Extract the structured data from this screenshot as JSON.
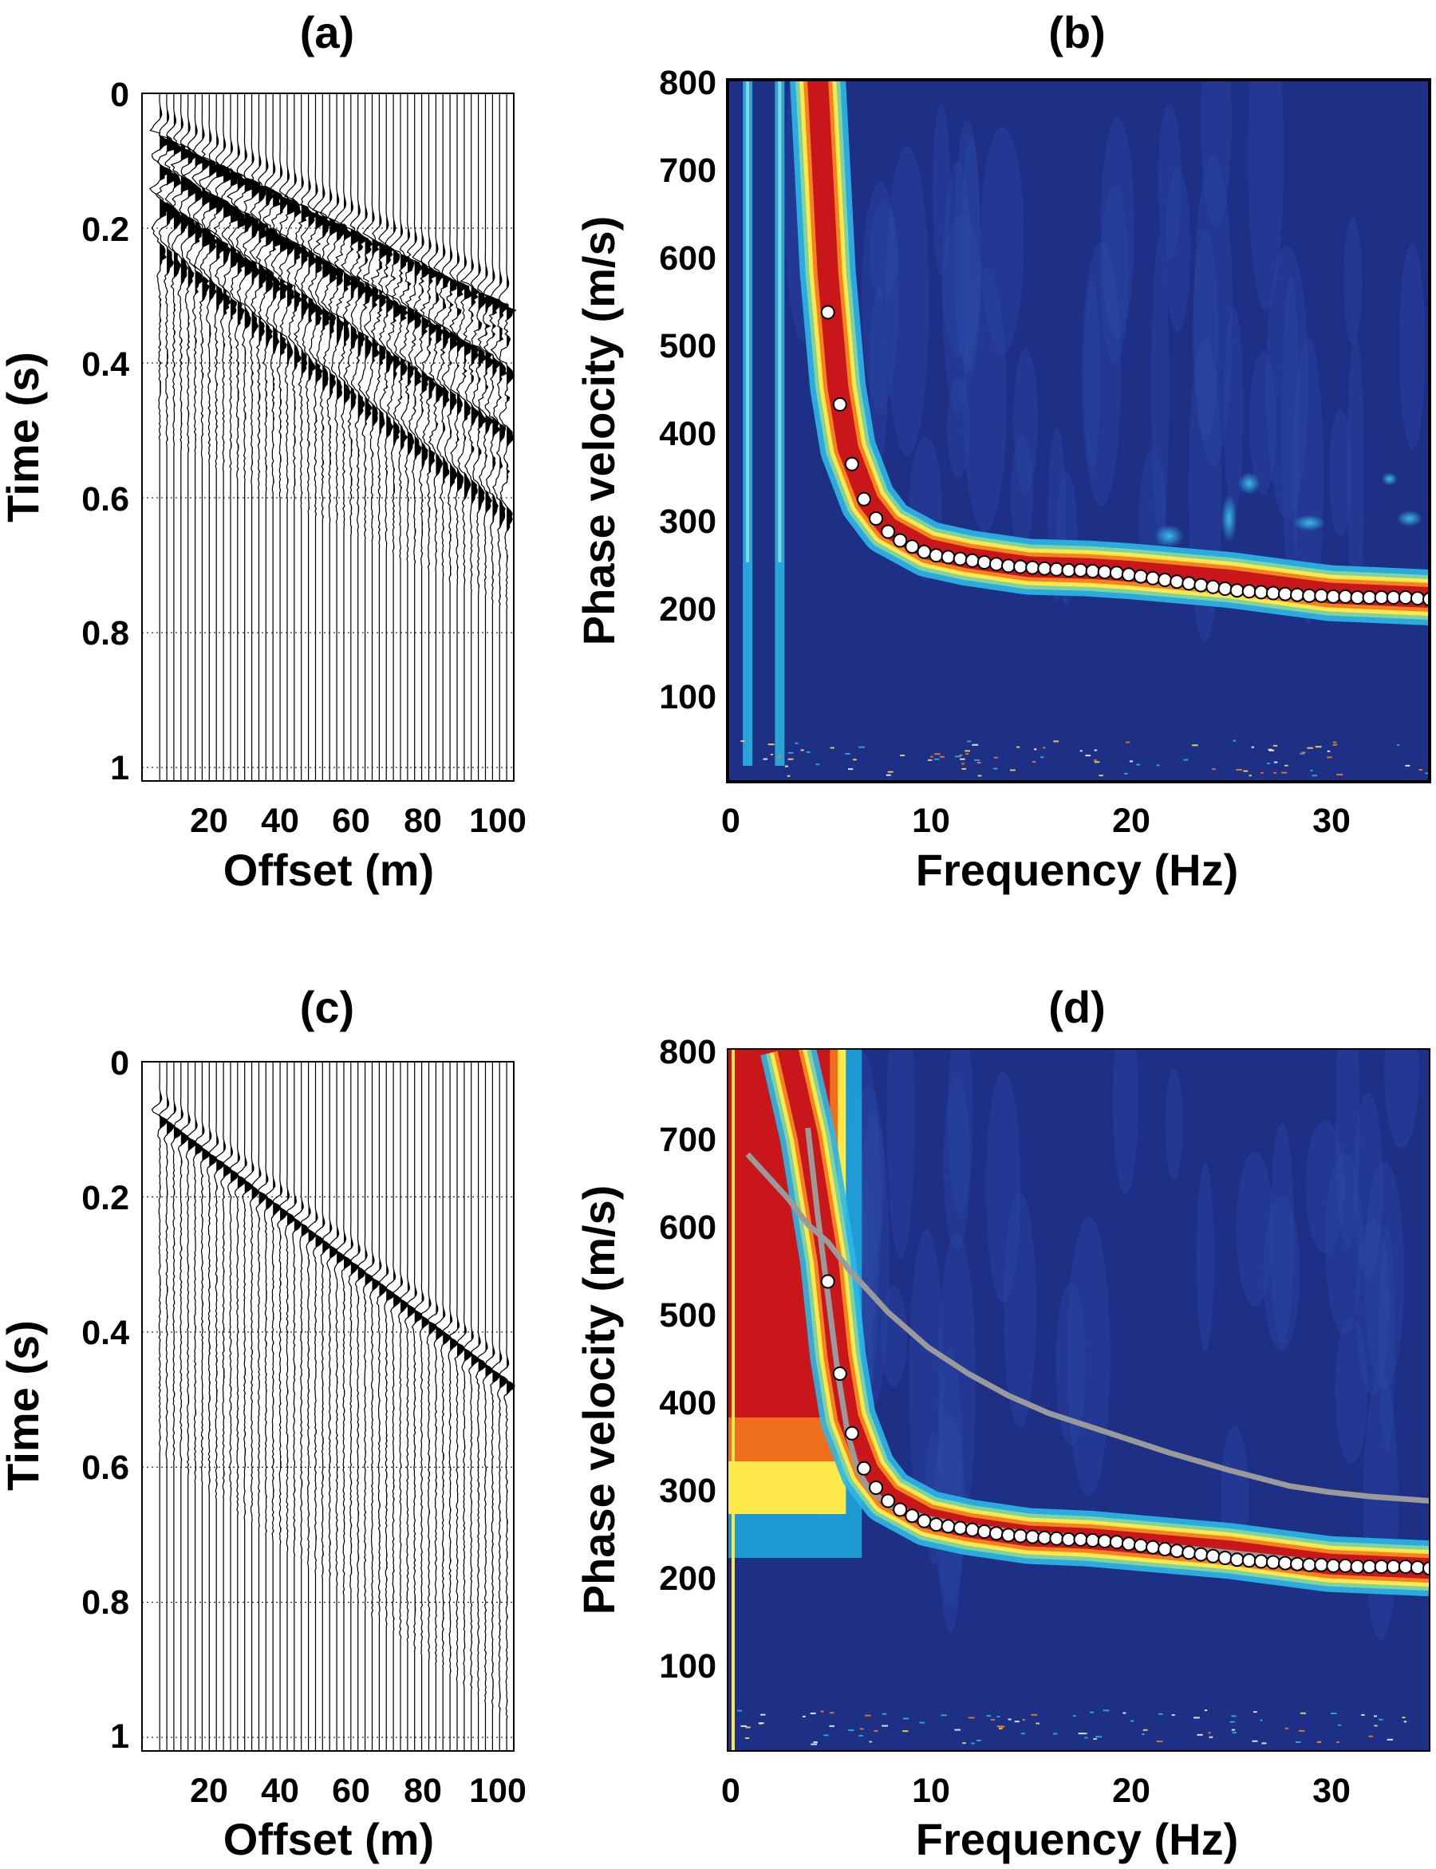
{
  "panels": {
    "a": {
      "title": "(a)",
      "xlabel": "Offset (m)",
      "ylabel": "Time (s)",
      "xticks": [
        "20",
        "40",
        "60",
        "80",
        "100"
      ],
      "yticks": [
        "0",
        "0.2",
        "0.4",
        "0.6",
        "0.8",
        "1"
      ]
    },
    "b": {
      "title": "(b)",
      "xlabel": "Frequency (Hz)",
      "ylabel": "Phase velocity (m/s)",
      "xticks": [
        "0",
        "10",
        "20",
        "30"
      ],
      "yticks": [
        "100",
        "200",
        "300",
        "400",
        "500",
        "600",
        "700",
        "800"
      ]
    },
    "c": {
      "title": "(c)",
      "xlabel": "Offset (m)",
      "ylabel": "Time (s)",
      "xticks": [
        "20",
        "40",
        "60",
        "80",
        "100"
      ],
      "yticks": [
        "0",
        "0.2",
        "0.4",
        "0.6",
        "0.8",
        "1"
      ]
    },
    "d": {
      "title": "(d)",
      "xlabel": "Frequency (Hz)",
      "ylabel": "Phase velocity (m/s)",
      "xticks": [
        "0",
        "10",
        "20",
        "30"
      ],
      "yticks": [
        "100",
        "200",
        "300",
        "400",
        "500",
        "600",
        "700",
        "800"
      ]
    }
  },
  "colors": {
    "background_dark_blue": "#1e2f86",
    "energy_red": "#c8161b",
    "energy_yellow": "#ffe84a",
    "energy_cyan": "#2bb8e8",
    "picked_point_fill": "#ffffff",
    "model_curve_gray": "#9a9a9a",
    "trace_black": "#000000"
  },
  "chart_data": [
    {
      "panel": "a",
      "type": "wiggle-seismogram",
      "x_range": [
        0,
        105
      ],
      "y_range": [
        0,
        1.02
      ],
      "trace_offsets_m": [
        5,
        7,
        9,
        11,
        13,
        15,
        17,
        19,
        21,
        23,
        25,
        27,
        29,
        31,
        33,
        35,
        37,
        39,
        41,
        43,
        45,
        47,
        49,
        51,
        53,
        55,
        57,
        59,
        61,
        63,
        65,
        67,
        69,
        71,
        73,
        75,
        77,
        79,
        81,
        83,
        85,
        87,
        89,
        91,
        93,
        95,
        97,
        99,
        101,
        103
      ],
      "events": [
        {
          "t0": 0.05,
          "velocity_ms": 390
        },
        {
          "t0": 0.09,
          "velocity_ms": 330
        },
        {
          "t0": 0.14,
          "velocity_ms": 290
        },
        {
          "t0": 0.2,
          "velocity_ms": 250
        }
      ],
      "noisy": true
    },
    {
      "panel": "b",
      "type": "heatmap",
      "x_range": [
        0,
        35
      ],
      "y_range": [
        0,
        800
      ],
      "fundamental_mode_ridge": {
        "x": [
          4.5,
          5,
          5.5,
          6,
          7,
          8,
          10,
          12,
          15,
          18,
          20,
          25,
          30,
          35
        ],
        "y": [
          800,
          580,
          450,
          380,
          320,
          290,
          265,
          255,
          245,
          243,
          240,
          230,
          215,
          210
        ]
      },
      "vertical_streaks_hz": [
        1.0,
        2.6
      ],
      "picked_dispersion": {
        "x": [
          5.0,
          5.6,
          6.2,
          6.8,
          7.4,
          8.0,
          8.6,
          9.2,
          9.8,
          10.4,
          11.0,
          11.6,
          12.2,
          12.8,
          13.4,
          14.0,
          14.6,
          15.2,
          15.8,
          16.4,
          17.0,
          17.6,
          18.2,
          18.8,
          19.4,
          20.0,
          20.6,
          21.2,
          21.8,
          22.4,
          23.0,
          23.6,
          24.2,
          24.8,
          25.4,
          26.0,
          26.6,
          27.2,
          27.8,
          28.4,
          29.0,
          29.6,
          30.2,
          30.8,
          31.4,
          32.0,
          32.6,
          33.2,
          33.8,
          34.4,
          35.0
        ],
        "y": [
          535,
          430,
          362,
          322,
          300,
          285,
          275,
          268,
          262,
          258,
          256,
          254,
          252,
          250,
          248,
          246,
          245,
          244,
          243,
          242,
          241,
          241,
          240,
          239,
          238,
          236,
          234,
          232,
          230,
          228,
          226,
          224,
          222,
          220,
          218,
          217,
          216,
          215,
          214,
          213,
          212,
          212,
          211,
          211,
          210,
          210,
          210,
          210,
          210,
          209,
          208
        ]
      }
    },
    {
      "panel": "c",
      "type": "wiggle-seismogram",
      "x_range": [
        0,
        105
      ],
      "y_range": [
        0,
        1.02
      ],
      "trace_offsets_m": [
        5,
        7,
        9,
        11,
        13,
        15,
        17,
        19,
        21,
        23,
        25,
        27,
        29,
        31,
        33,
        35,
        37,
        39,
        41,
        43,
        45,
        47,
        49,
        51,
        53,
        55,
        57,
        59,
        61,
        63,
        65,
        67,
        69,
        71,
        73,
        75,
        77,
        79,
        81,
        83,
        85,
        87,
        89,
        91,
        93,
        95,
        97,
        99,
        101,
        103
      ],
      "events": [
        {
          "t0": 0.06,
          "velocity_ms": 250
        }
      ],
      "noisy": false
    },
    {
      "panel": "d",
      "type": "heatmap",
      "x_range": [
        0,
        35
      ],
      "y_range": [
        0,
        800
      ],
      "fundamental_mode_ridge": {
        "x": [
          3,
          4,
          5,
          5.5,
          6,
          7,
          8,
          10,
          12,
          15,
          18,
          20,
          25,
          30,
          35
        ],
        "y": [
          800,
          700,
          560,
          450,
          380,
          320,
          290,
          265,
          255,
          245,
          242,
          238,
          228,
          213,
          208
        ]
      },
      "broad_low_frequency_energy_hz": [
        0.5,
        5.5
      ],
      "picked_dispersion": {
        "x": [
          5.0,
          5.6,
          6.2,
          6.8,
          7.4,
          8.0,
          8.6,
          9.2,
          9.8,
          10.4,
          11.0,
          11.6,
          12.2,
          12.8,
          13.4,
          14.0,
          14.6,
          15.2,
          15.8,
          16.4,
          17.0,
          17.6,
          18.2,
          18.8,
          19.4,
          20.0,
          20.6,
          21.2,
          21.8,
          22.4,
          23.0,
          23.6,
          24.2,
          24.8,
          25.4,
          26.0,
          26.6,
          27.2,
          27.8,
          28.4,
          29.0,
          29.6,
          30.2,
          30.8,
          31.4,
          32.0,
          32.6,
          33.2,
          33.8,
          34.4,
          35.0
        ],
        "y": [
          535,
          430,
          362,
          322,
          300,
          285,
          275,
          268,
          262,
          258,
          256,
          254,
          252,
          250,
          248,
          246,
          245,
          244,
          243,
          242,
          241,
          241,
          240,
          239,
          238,
          236,
          234,
          232,
          230,
          228,
          226,
          224,
          222,
          220,
          218,
          217,
          216,
          215,
          214,
          213,
          212,
          212,
          211,
          211,
          210,
          210,
          210,
          210,
          210,
          209,
          208
        ]
      },
      "model_curves": [
        {
          "x": [
            4.0,
            4.5,
            5.0,
            5.5,
            6.0,
            6.5,
            7.0,
            8.0,
            10.0,
            12.0,
            15.0,
            20.0,
            25.0,
            30.0,
            35.0
          ],
          "y": [
            710,
            610,
            520,
            430,
            360,
            320,
            300,
            280,
            265,
            256,
            248,
            238,
            226,
            214,
            208
          ]
        },
        {
          "x": [
            1.0,
            2.0,
            3.0,
            4.0,
            5.0,
            6.0,
            8.0,
            10.0,
            12.0,
            14.0,
            16.0,
            18.0,
            20.0,
            22.0,
            25.0,
            28.0,
            30.0,
            32.0,
            35.0
          ],
          "y": [
            680,
            655,
            630,
            600,
            580,
            550,
            500,
            460,
            430,
            405,
            385,
            370,
            355,
            340,
            320,
            302,
            295,
            290,
            285
          ]
        }
      ]
    }
  ]
}
